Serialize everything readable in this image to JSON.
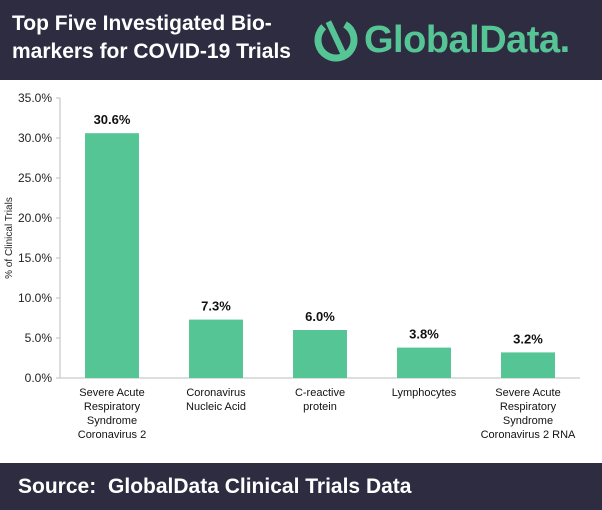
{
  "header": {
    "title": "Top Five Investigated Bio-markers for COVID-19 Trials",
    "logo_text": "GlobalData.",
    "logo_icon": "globaldata-logo-icon"
  },
  "footer": {
    "source_label": "Source:",
    "source_text": "GlobalData Clinical Trials Data"
  },
  "colors": {
    "bar": "#56c596",
    "header_bg": "#2e2c41",
    "accent": "#56c596"
  },
  "chart_data": {
    "type": "bar",
    "title": "Top Five Investigated Bio-markers for COVID-19 Trials",
    "xlabel": "",
    "ylabel": "% of Clinical Trials",
    "ylim": [
      0,
      35
    ],
    "yticks": [
      "0.0%",
      "5.0%",
      "10.0%",
      "15.0%",
      "20.0%",
      "25.0%",
      "30.0%",
      "35.0%"
    ],
    "grid": false,
    "categories": [
      [
        "Severe Acute",
        "Respiratory",
        "Syndrome",
        "Coronavirus 2"
      ],
      [
        "Coronavirus",
        "Nucleic Acid"
      ],
      [
        "C-reactive",
        "protein"
      ],
      [
        "Lymphocytes"
      ],
      [
        "Severe Acute",
        "Respiratory",
        "Syndrome",
        "Coronavirus 2 RNA"
      ]
    ],
    "values": [
      30.6,
      7.3,
      6.0,
      3.8,
      3.2
    ],
    "data_labels": [
      "30.6%",
      "7.3%",
      "6.0%",
      "3.8%",
      "3.2%"
    ]
  }
}
